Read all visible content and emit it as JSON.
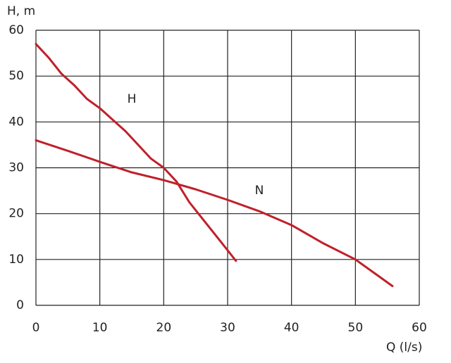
{
  "chart_data": {
    "type": "line",
    "y_label": "H, m",
    "x_label": "Q (l/s)",
    "xlim": [
      0,
      60
    ],
    "ylim": [
      0,
      60
    ],
    "xticks": [
      0,
      10,
      20,
      30,
      40,
      50,
      60
    ],
    "yticks": [
      0,
      10,
      20,
      30,
      40,
      50,
      60
    ],
    "grid": true,
    "series": [
      {
        "name": "H",
        "color": "#c0202a",
        "x": [
          0,
          2,
          4,
          6,
          8,
          10,
          12,
          14,
          16,
          18,
          20,
          22,
          24,
          26,
          28,
          30,
          31.3
        ],
        "values": [
          57,
          54,
          50.5,
          48,
          45,
          43,
          40.5,
          38,
          35,
          32,
          30,
          27,
          22.5,
          19,
          15.5,
          12,
          9.7
        ]
      },
      {
        "name": "N",
        "color": "#c0202a",
        "x": [
          0,
          5,
          10,
          15,
          20,
          25,
          30,
          35,
          40,
          45,
          50,
          53,
          55.8
        ],
        "values": [
          36,
          33.7,
          31.3,
          29,
          27.3,
          25.3,
          23,
          20.5,
          17.5,
          13.5,
          10,
          7,
          4.2
        ]
      }
    ]
  }
}
